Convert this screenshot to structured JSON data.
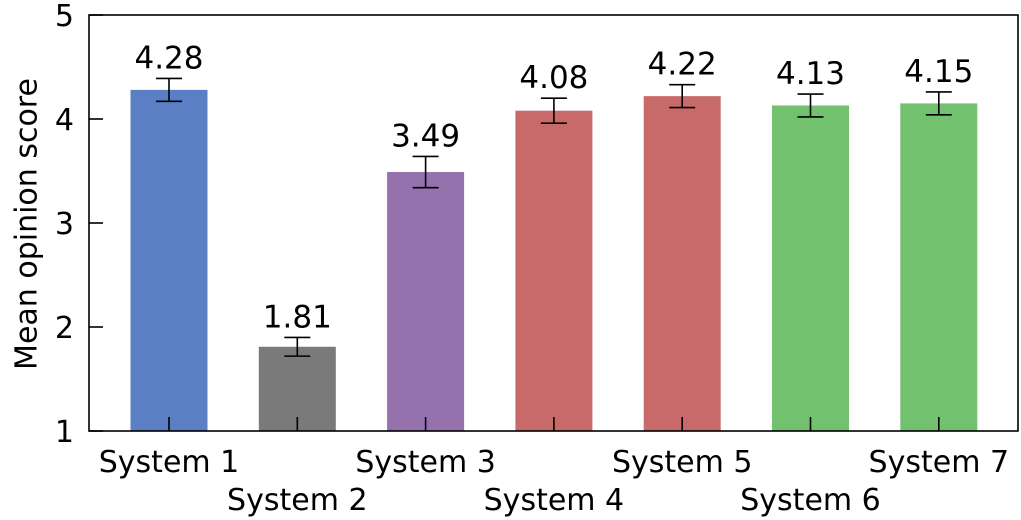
{
  "chart_data": {
    "type": "bar",
    "title": "",
    "xlabel": "",
    "ylabel": "Mean opinion score",
    "ylim": [
      1,
      5
    ],
    "yticks": [
      1,
      2,
      3,
      4,
      5
    ],
    "grid": false,
    "legend": "none",
    "categories": [
      "System 1",
      "System 2",
      "System 3",
      "System 4",
      "System 5",
      "System 6",
      "System 7"
    ],
    "values": [
      4.28,
      1.81,
      3.49,
      4.08,
      4.22,
      4.13,
      4.15
    ],
    "value_labels": [
      "4.28",
      "1.81",
      "3.49",
      "4.08",
      "4.22",
      "4.13",
      "4.15"
    ],
    "errors": [
      0.11,
      0.09,
      0.15,
      0.12,
      0.11,
      0.11,
      0.11
    ],
    "colors": [
      "#5a7fc4",
      "#7a7a7a",
      "#9571ae",
      "#c96a6a",
      "#c96a6a",
      "#72c16e",
      "#72c16e"
    ]
  }
}
